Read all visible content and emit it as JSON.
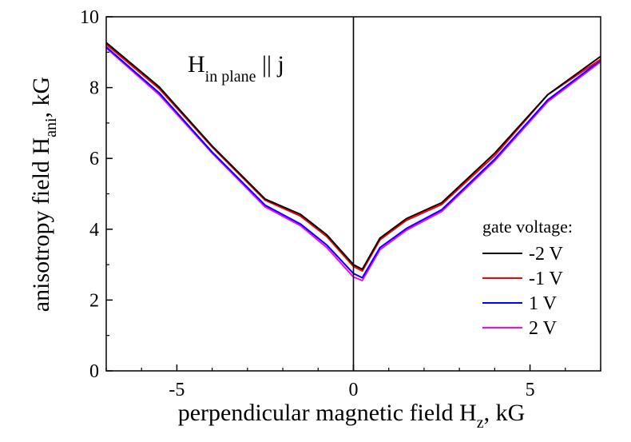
{
  "chart_data": {
    "type": "line",
    "xlabel": {
      "main": "perpendicular magnetic field H",
      "sub": "z",
      "tail": ", kG"
    },
    "ylabel": {
      "main": "anisotropy field H",
      "sub": "ani",
      "tail": ", kG"
    },
    "xlim": [
      -7,
      7
    ],
    "ylim": [
      0,
      10
    ],
    "x_ticks": [
      -5,
      0,
      5
    ],
    "x_tick_labels": [
      "-5",
      "0",
      "5"
    ],
    "y_ticks": [
      0,
      2,
      4,
      6,
      8,
      10
    ],
    "y_tick_labels": [
      "0",
      "2",
      "4",
      "6",
      "8",
      "10"
    ],
    "grid": false,
    "vertical_line_at_x": 0,
    "annotation": {
      "main": "H",
      "sub": "in plane",
      "tail": " || j"
    },
    "legend": {
      "title": "gate voltage:",
      "placement": "right"
    },
    "series": [
      {
        "name": "-2 V",
        "color": "#000000",
        "x": [
          -7,
          -5.5,
          -4,
          -2.5,
          -1.5,
          -0.75,
          0,
          0.25,
          0.75,
          1.5,
          2.5,
          4,
          5.5,
          7
        ],
        "y": [
          9.27,
          8.02,
          6.35,
          4.85,
          4.42,
          3.84,
          3.0,
          2.87,
          3.75,
          4.3,
          4.75,
          6.15,
          7.8,
          8.88
        ]
      },
      {
        "name": "-1 V",
        "color": "#ff0000",
        "x": [
          -7,
          -5.5,
          -4,
          -2.5,
          -1.5,
          -0.75,
          0,
          0.25,
          0.75,
          1.5,
          2.5,
          4,
          5.5,
          7
        ],
        "y": [
          9.22,
          7.97,
          6.32,
          4.82,
          4.37,
          3.79,
          2.95,
          2.82,
          3.7,
          4.25,
          4.7,
          6.08,
          7.8,
          8.8
        ]
      },
      {
        "name": "1 V",
        "color": "#0000ff",
        "x": [
          -7,
          -5.5,
          -4,
          -2.5,
          -1.5,
          -0.75,
          0,
          0.25,
          0.75,
          1.5,
          2.5,
          4,
          5.5,
          7
        ],
        "y": [
          9.15,
          7.85,
          6.18,
          4.68,
          4.15,
          3.55,
          2.75,
          2.63,
          3.48,
          4.02,
          4.55,
          5.98,
          7.65,
          8.77
        ]
      },
      {
        "name": "2 V",
        "color": "#ff00ff",
        "x": [
          -7,
          -5.5,
          -4,
          -2.5,
          -1.5,
          -0.75,
          0,
          0.25,
          0.75,
          1.5,
          2.5,
          4,
          5.5,
          7
        ],
        "y": [
          9.12,
          7.8,
          6.15,
          4.63,
          4.1,
          3.48,
          2.65,
          2.55,
          3.42,
          3.97,
          4.5,
          5.93,
          7.6,
          8.73
        ]
      }
    ]
  }
}
